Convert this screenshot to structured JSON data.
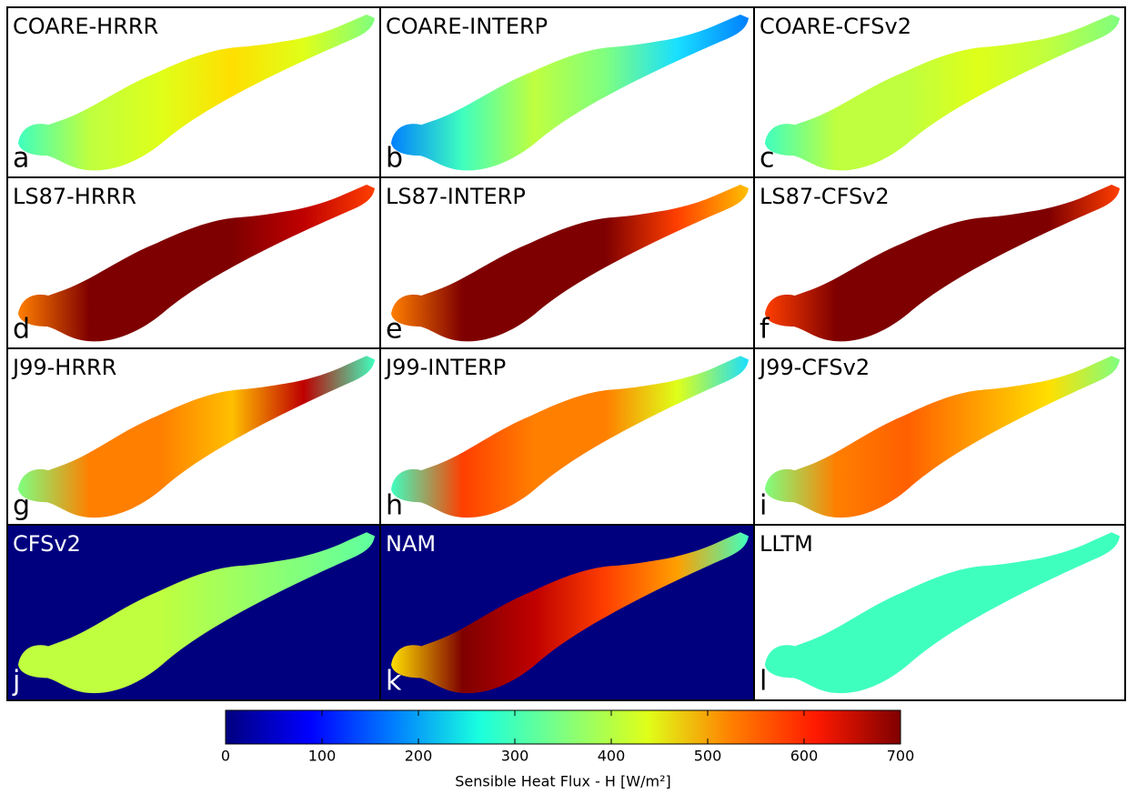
{
  "panels": [
    {
      "title": "COARE-HRRR",
      "letter": "a"
    },
    {
      "title": "COARE-INTERP",
      "letter": "b"
    },
    {
      "title": "COARE-CFSv2",
      "letter": "c"
    },
    {
      "title": "LS87-HRRR",
      "letter": "d"
    },
    {
      "title": "LS87-INTERP",
      "letter": "e"
    },
    {
      "title": "LS87-CFSv2",
      "letter": "f"
    },
    {
      "title": "J99-HRRR",
      "letter": "g"
    },
    {
      "title": "J99-INTERP",
      "letter": "h"
    },
    {
      "title": "J99-CFSv2",
      "letter": "i"
    },
    {
      "title": "CFSv2",
      "letter": "j"
    },
    {
      "title": "NAM",
      "letter": "k"
    },
    {
      "title": "LLTM",
      "letter": "l"
    }
  ],
  "colorbar": {
    "label": "Sensible Heat Flux - H [W/m²]",
    "xlim": [
      0,
      700
    ],
    "xticks": [
      0,
      100,
      200,
      300,
      400,
      500,
      600,
      700
    ],
    "colormap": [
      "#00007f",
      "#0000ff",
      "#007fff",
      "#19ffdf",
      "#7fff7f",
      "#dfff19",
      "#ff7f00",
      "#ff1900",
      "#7f0000"
    ]
  }
}
